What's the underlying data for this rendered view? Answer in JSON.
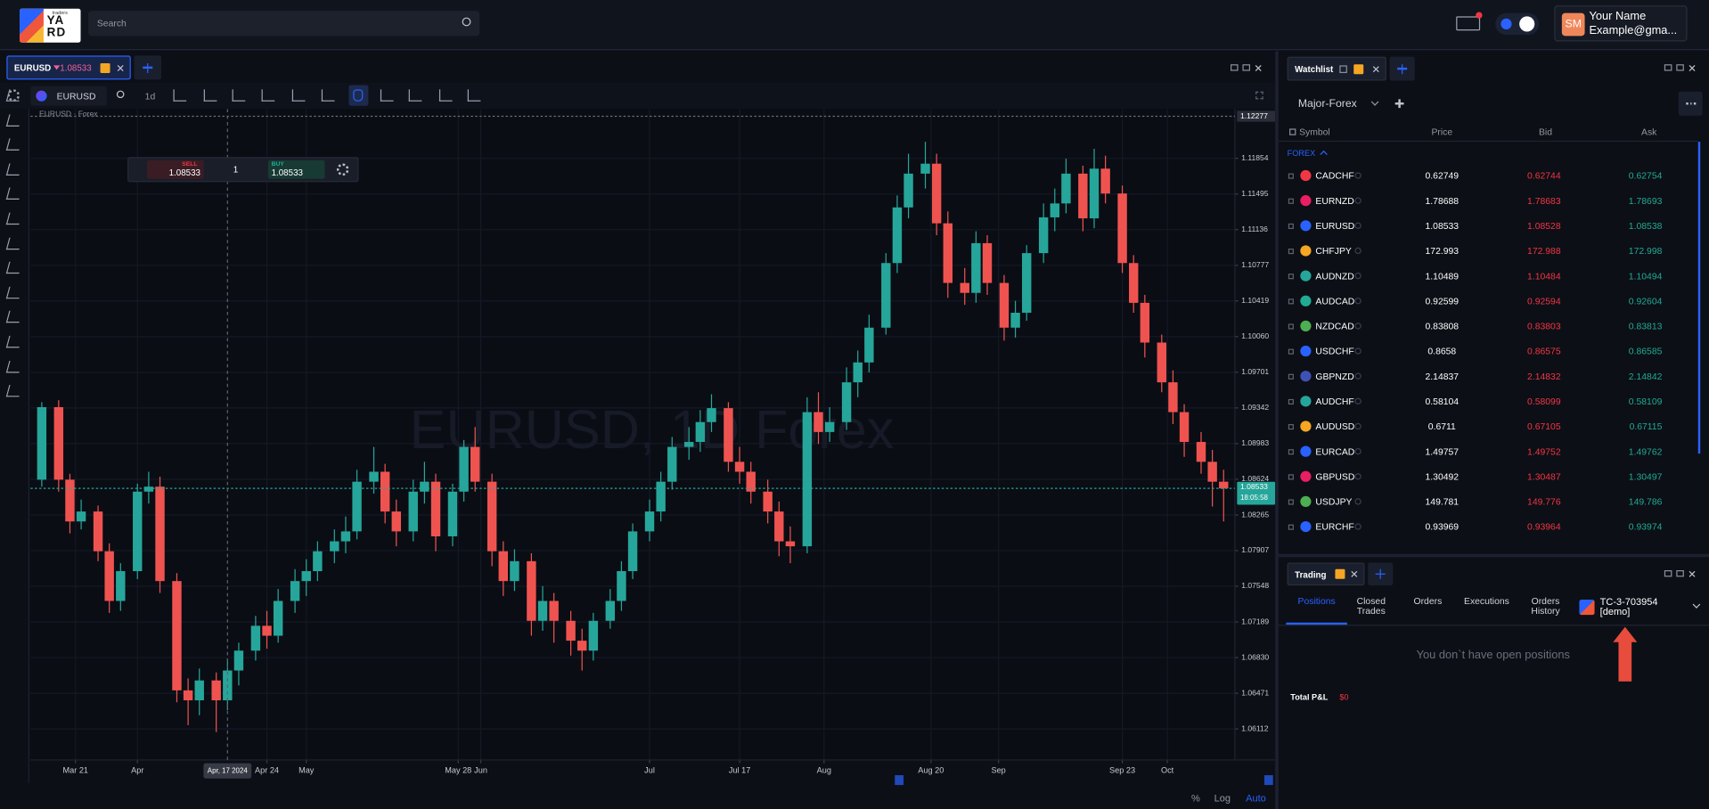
{
  "header": {
    "logo_small": "traders",
    "logo_lines": [
      "YA",
      "RD"
    ],
    "search_placeholder": "Search",
    "user_initials": "SM",
    "user_name": "Your Name",
    "user_email": "Example@gma..."
  },
  "chart_tab": {
    "symbol": "EURUSD",
    "price": 1.08533
  },
  "toolbar": {
    "symbol": "EURUSD",
    "interval": "1d"
  },
  "trade_widget": {
    "sell_label": "SELL",
    "sell_price": 1.08533,
    "quantity": 1,
    "buy_label": "BUY",
    "buy_price": 1.08533
  },
  "chart_footer": [
    "%",
    "Log",
    "Auto"
  ],
  "chart_data": {
    "type": "candlestick",
    "source_label": "EURUSD · Forex",
    "watermark": "EURUSD, 1D Forex",
    "up_color": "#26a69a",
    "down_color": "#ef5350",
    "grid": true,
    "x": [
      "2024-03-15",
      "2024-03-18",
      "2024-03-20",
      "2024-03-22",
      "2024-03-25",
      "2024-03-27",
      "2024-03-29",
      "2024-04-01",
      "2024-04-03",
      "2024-04-05",
      "2024-04-08",
      "2024-04-10",
      "2024-04-12",
      "2024-04-15",
      "2024-04-17",
      "2024-04-19",
      "2024-04-22",
      "2024-04-24",
      "2024-04-26",
      "2024-04-29",
      "2024-05-01",
      "2024-05-03",
      "2024-05-06",
      "2024-05-08",
      "2024-05-10",
      "2024-05-13",
      "2024-05-15",
      "2024-05-17",
      "2024-05-20",
      "2024-05-22",
      "2024-05-24",
      "2024-05-27",
      "2024-05-29",
      "2024-05-31",
      "2024-06-03",
      "2024-06-05",
      "2024-06-07",
      "2024-06-10",
      "2024-06-12",
      "2024-06-14",
      "2024-06-17",
      "2024-06-19",
      "2024-06-21",
      "2024-06-24",
      "2024-06-26",
      "2024-06-28",
      "2024-07-01",
      "2024-07-03",
      "2024-07-05",
      "2024-07-08",
      "2024-07-10",
      "2024-07-12",
      "2024-07-15",
      "2024-07-17",
      "2024-07-19",
      "2024-07-22",
      "2024-07-24",
      "2024-07-26",
      "2024-07-29",
      "2024-07-31",
      "2024-08-02",
      "2024-08-05",
      "2024-08-07",
      "2024-08-09",
      "2024-08-12",
      "2024-08-14",
      "2024-08-16",
      "2024-08-19",
      "2024-08-21",
      "2024-08-23",
      "2024-08-26",
      "2024-08-28",
      "2024-08-30",
      "2024-09-02",
      "2024-09-04",
      "2024-09-06",
      "2024-09-09",
      "2024-09-11",
      "2024-09-13",
      "2024-09-16",
      "2024-09-18",
      "2024-09-20",
      "2024-09-23",
      "2024-09-25",
      "2024-09-27",
      "2024-09-30",
      "2024-10-02",
      "2024-10-04",
      "2024-10-07",
      "2024-10-09",
      "2024-10-11"
    ],
    "open": [
      1.0862,
      1.0935,
      1.0862,
      1.082,
      1.083,
      1.079,
      1.074,
      1.077,
      1.085,
      1.0855,
      1.076,
      1.065,
      1.064,
      1.066,
      1.064,
      1.067,
      1.069,
      1.0715,
      1.0705,
      1.074,
      1.076,
      1.077,
      1.079,
      1.08,
      1.081,
      1.086,
      1.087,
      1.083,
      1.081,
      1.085,
      1.086,
      1.0805,
      1.085,
      1.0895,
      1.086,
      1.079,
      1.076,
      1.078,
      1.072,
      1.074,
      1.072,
      1.07,
      1.069,
      1.072,
      1.074,
      1.077,
      1.081,
      1.083,
      1.086,
      1.0895,
      1.09,
      1.092,
      1.0934,
      1.088,
      1.087,
      1.085,
      1.083,
      1.08,
      1.0795,
      1.093,
      1.091,
      1.092,
      1.096,
      1.098,
      1.1015,
      1.108,
      1.1136,
      1.117,
      1.118,
      1.112,
      1.106,
      1.105,
      1.11,
      1.106,
      1.1015,
      1.103,
      1.109,
      1.1126,
      1.114,
      1.117,
      1.1125,
      1.1175,
      1.115,
      1.108,
      1.104,
      1.1,
      1.096,
      1.093,
      1.09,
      1.088,
      1.086
    ],
    "high": [
      1.094,
      1.0942,
      1.0868,
      1.0842,
      1.0836,
      1.0798,
      1.0778,
      1.0858,
      1.087,
      1.0865,
      1.0768,
      1.0662,
      1.0672,
      1.0668,
      1.0682,
      1.0698,
      1.0725,
      1.073,
      1.0752,
      1.0772,
      1.0782,
      1.08,
      1.0812,
      1.0825,
      1.0872,
      1.0895,
      1.0878,
      1.0842,
      1.0862,
      1.088,
      1.0868,
      1.0858,
      1.0902,
      1.0915,
      1.0868,
      1.08,
      1.0792,
      1.0788,
      1.0755,
      1.0748,
      1.073,
      1.0712,
      1.0728,
      1.0752,
      1.078,
      1.0818,
      1.0842,
      1.087,
      1.0905,
      1.0915,
      1.0932,
      1.0948,
      1.094,
      1.0895,
      1.088,
      1.0862,
      1.084,
      1.0815,
      1.0945,
      1.095,
      1.0935,
      1.0975,
      1.0992,
      1.1028,
      1.109,
      1.1148,
      1.119,
      1.1202,
      1.119,
      1.1132,
      1.1075,
      1.1112,
      1.1108,
      1.1068,
      1.1042,
      1.1098,
      1.114,
      1.1155,
      1.1185,
      1.1178,
      1.1195,
      1.1188,
      1.1158,
      1.1088,
      1.1048,
      1.1008,
      1.0972,
      1.0938,
      1.091,
      1.0892,
      1.0872
    ],
    "low": [
      1.0855,
      1.085,
      1.0808,
      1.0812,
      1.078,
      1.0728,
      1.073,
      1.0762,
      1.0838,
      1.0748,
      1.0638,
      1.0615,
      1.0625,
      1.0608,
      1.063,
      1.0655,
      1.068,
      1.0692,
      1.0698,
      1.0728,
      1.0745,
      1.076,
      1.0778,
      1.0788,
      1.0802,
      1.0848,
      1.0818,
      1.0795,
      1.08,
      1.0838,
      1.079,
      1.0795,
      1.084,
      1.085,
      1.0775,
      1.0745,
      1.075,
      1.0705,
      1.071,
      1.0698,
      1.0685,
      1.067,
      1.068,
      1.0712,
      1.073,
      1.0762,
      1.08,
      1.082,
      1.0852,
      1.0882,
      1.089,
      1.091,
      1.087,
      1.0858,
      1.0838,
      1.0818,
      1.0785,
      1.0778,
      1.0788,
      1.0898,
      1.09,
      1.0912,
      1.0945,
      1.097,
      1.1008,
      1.107,
      1.1125,
      1.1155,
      1.1108,
      1.1045,
      1.1038,
      1.104,
      1.1048,
      1.1002,
      1.1005,
      1.1022,
      1.108,
      1.1112,
      1.113,
      1.1112,
      1.1115,
      1.114,
      1.107,
      1.103,
      1.0985,
      1.095,
      1.0918,
      1.0885,
      1.0868,
      1.0835,
      1.082
    ],
    "close": [
      1.0935,
      1.0862,
      1.082,
      1.083,
      1.079,
      1.074,
      1.077,
      1.085,
      1.0855,
      1.076,
      1.065,
      1.064,
      1.066,
      1.064,
      1.067,
      1.069,
      1.0715,
      1.0705,
      1.074,
      1.076,
      1.077,
      1.079,
      1.08,
      1.081,
      1.086,
      1.087,
      1.083,
      1.081,
      1.085,
      1.086,
      1.0805,
      1.085,
      1.0895,
      1.086,
      1.079,
      1.076,
      1.078,
      1.072,
      1.074,
      1.072,
      1.07,
      1.069,
      1.072,
      1.074,
      1.077,
      1.081,
      1.083,
      1.086,
      1.0895,
      1.09,
      1.092,
      1.0934,
      1.088,
      1.087,
      1.085,
      1.083,
      1.08,
      1.0795,
      1.093,
      1.091,
      1.092,
      1.096,
      1.098,
      1.1015,
      1.108,
      1.1136,
      1.117,
      1.118,
      1.112,
      1.106,
      1.105,
      1.11,
      1.106,
      1.1015,
      1.103,
      1.109,
      1.1126,
      1.114,
      1.117,
      1.1125,
      1.1175,
      1.115,
      1.108,
      1.104,
      1.1,
      1.096,
      1.093,
      1.09,
      1.088,
      1.086,
      1.08533
    ],
    "xlim": [
      "2024-03-13",
      "2024-10-13"
    ],
    "xticks": [
      {
        "value": "2024-03-21",
        "label": "Mar 21"
      },
      {
        "value": "2024-04-01",
        "label": "Apr"
      },
      {
        "value": "2024-04-24",
        "label": "Apr 24"
      },
      {
        "value": "2024-05-01",
        "label": "May"
      },
      {
        "value": "2024-05-28",
        "label": "May 28"
      },
      {
        "value": "2024-06-01",
        "label": "Jun"
      },
      {
        "value": "2024-07-01",
        "label": "Jul"
      },
      {
        "value": "2024-07-17",
        "label": "Jul 17"
      },
      {
        "value": "2024-08-01",
        "label": "Aug"
      },
      {
        "value": "2024-08-20",
        "label": "Aug 20"
      },
      {
        "value": "2024-09-01",
        "label": "Sep"
      },
      {
        "value": "2024-09-23",
        "label": "Sep 23"
      },
      {
        "value": "2024-10-01",
        "label": "Oct"
      }
    ],
    "ylim": [
      1.058,
      1.1235
    ],
    "yticks": [
      1.06112,
      1.06471,
      {
        "value": 1.0683,
        "label": "1.06830"
      },
      1.07189,
      1.07548,
      1.07907,
      1.08265,
      1.08624,
      1.08983,
      1.09342,
      1.09701,
      {
        "value": 1.1006,
        "label": "1.10060"
      },
      1.10419,
      1.10777,
      1.11136,
      1.11495,
      1.11854
    ],
    "top_marker": 1.12277,
    "last_price": 1.08533,
    "countdown": "18:05:58",
    "crosshair": {
      "x": "2024-04-17",
      "label": "Apr, 17 2024"
    }
  },
  "watchlist": {
    "title": "Watchlist",
    "list_name": "Major-Forex",
    "columns": [
      "Symbol",
      "Price",
      "Bid",
      "Ask"
    ],
    "group": "FOREX",
    "bid_color": "#f23645",
    "ask_color": "#22ab94",
    "rows": [
      {
        "symbol": "CADCHF",
        "price": 0.62749,
        "bid": 0.62744,
        "ask": 0.62754
      },
      {
        "symbol": "EURNZD",
        "price": 1.78688,
        "bid": 1.78683,
        "ask": 1.78693
      },
      {
        "symbol": "EURUSD",
        "price": 1.08533,
        "bid": 1.08528,
        "ask": 1.08538
      },
      {
        "symbol": "CHFJPY",
        "price": 172.993,
        "bid": 172.988,
        "ask": 172.998
      },
      {
        "symbol": "AUDNZD",
        "price": 1.10489,
        "bid": 1.10484,
        "ask": 1.10494
      },
      {
        "symbol": "AUDCAD",
        "price": 0.92599,
        "bid": 0.92594,
        "ask": 0.92604
      },
      {
        "symbol": "NZDCAD",
        "price": 0.83808,
        "bid": 0.83803,
        "ask": 0.83813
      },
      {
        "symbol": "USDCHF",
        "price": 0.8658,
        "bid": 0.86575,
        "ask": 0.86585
      },
      {
        "symbol": "GBPNZD",
        "price": 2.14837,
        "bid": 2.14832,
        "ask": 2.14842
      },
      {
        "symbol": "AUDCHF",
        "price": 0.58104,
        "bid": 0.58099,
        "ask": 0.58109
      },
      {
        "symbol": "AUDUSD",
        "price": 0.6711,
        "bid": 0.67105,
        "ask": 0.67115
      },
      {
        "symbol": "EURCAD",
        "price": 1.49757,
        "bid": 1.49752,
        "ask": 1.49762
      },
      {
        "symbol": "GBPUSD",
        "price": 1.30492,
        "bid": 1.30487,
        "ask": 1.30497
      },
      {
        "symbol": "USDJPY",
        "price": 149.781,
        "bid": 149.776,
        "ask": 149.786
      },
      {
        "symbol": "EURCHF",
        "price": 0.93969,
        "bid": 0.93964,
        "ask": 0.93974
      }
    ]
  },
  "trading": {
    "title": "Trading",
    "tabs": [
      "Positions",
      "Closed Trades",
      "Orders",
      "Executions",
      "Orders History"
    ],
    "account_id": "TC-3-703954",
    "account_type": "[demo]",
    "empty_message": "You don`t have open positions",
    "total_pnl_label": "Total P&L",
    "total_pnl_value": "$0"
  }
}
